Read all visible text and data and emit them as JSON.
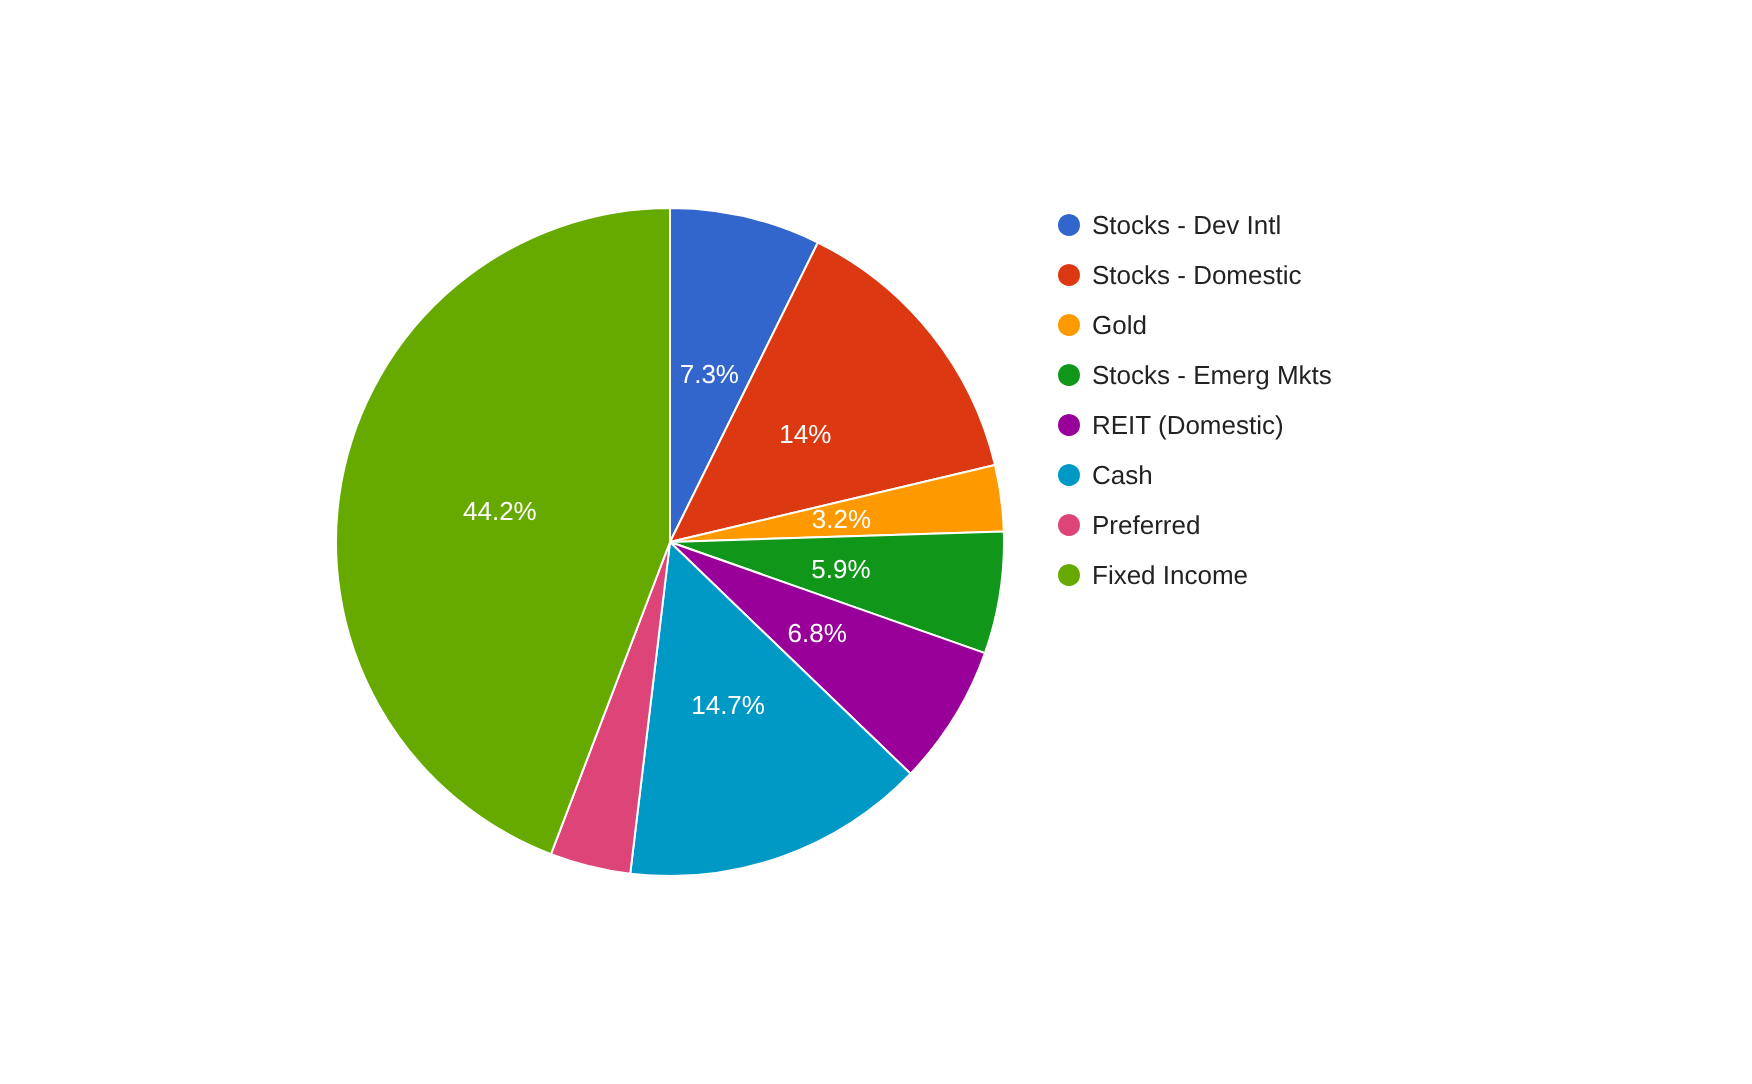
{
  "chart_data": {
    "type": "pie",
    "categories": [
      "Stocks - Dev Intl",
      "Stocks - Domestic",
      "Gold",
      "Stocks - Emerg Mkts",
      "REIT (Domestic)",
      "Cash",
      "Preferred",
      "Fixed Income"
    ],
    "values": [
      7.3,
      14,
      3.2,
      5.9,
      6.8,
      14.7,
      3.9,
      44.2
    ],
    "colors": [
      "#3366cc",
      "#dc3912",
      "#ff9900",
      "#109618",
      "#990099",
      "#0099c6",
      "#dd4477",
      "#66aa00"
    ],
    "value_labels": [
      "7.3%",
      "14%",
      "3.2%",
      "5.9%",
      "6.8%",
      "14.7%",
      null,
      "44.2%"
    ],
    "legend": "top right"
  }
}
